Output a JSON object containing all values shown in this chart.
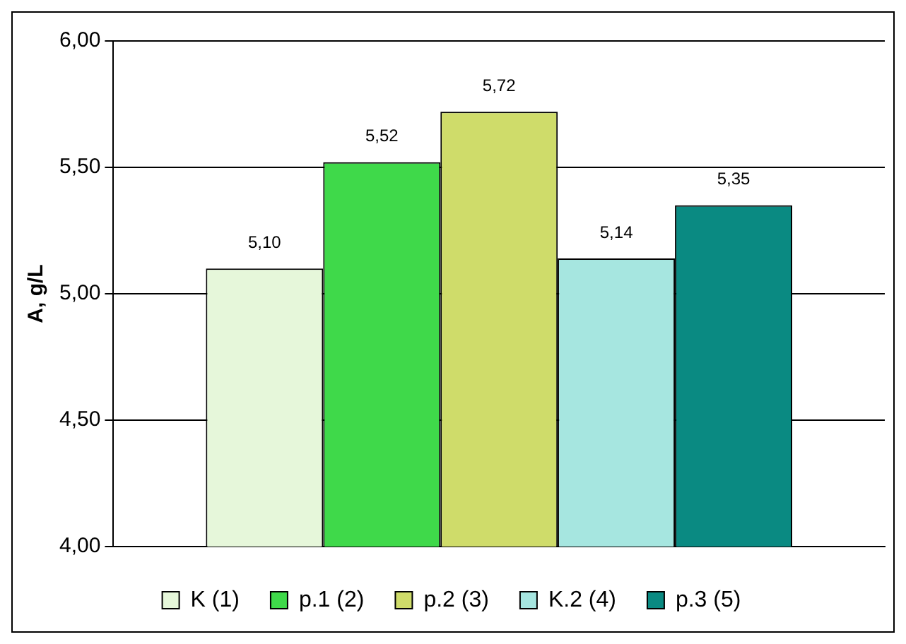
{
  "chart_data": {
    "type": "bar",
    "ylabel": "A, g/L",
    "categories": [
      null
    ],
    "series": [
      {
        "name": "K (1)",
        "color": "#e6f7da",
        "values": [
          5.1
        ],
        "value_labels": [
          "5,10"
        ]
      },
      {
        "name": "p.1 (2)",
        "color": "#3fd94a",
        "values": [
          5.52
        ],
        "value_labels": [
          "5,52"
        ]
      },
      {
        "name": "p.2 (3)",
        "color": "#cfdc6a",
        "values": [
          5.72
        ],
        "value_labels": [
          "5,72"
        ]
      },
      {
        "name": "K.2 (4)",
        "color": "#a6e6e0",
        "values": [
          5.14
        ],
        "value_labels": [
          "5,14"
        ]
      },
      {
        "name": "p.3 (5)",
        "color": "#0a8a82",
        "values": [
          5.35
        ],
        "value_labels": [
          "5,35"
        ]
      }
    ],
    "ylim": [
      4,
      6
    ],
    "yticks": [
      {
        "value": 4,
        "label": "4,00"
      },
      {
        "value": 4.5,
        "label": "4,50"
      },
      {
        "value": 5,
        "label": "5,00"
      },
      {
        "value": 5.5,
        "label": "5,50"
      },
      {
        "value": 6,
        "label": "6,00"
      }
    ],
    "grid": "y",
    "legend": "bottom",
    "tick_labels": "y"
  }
}
